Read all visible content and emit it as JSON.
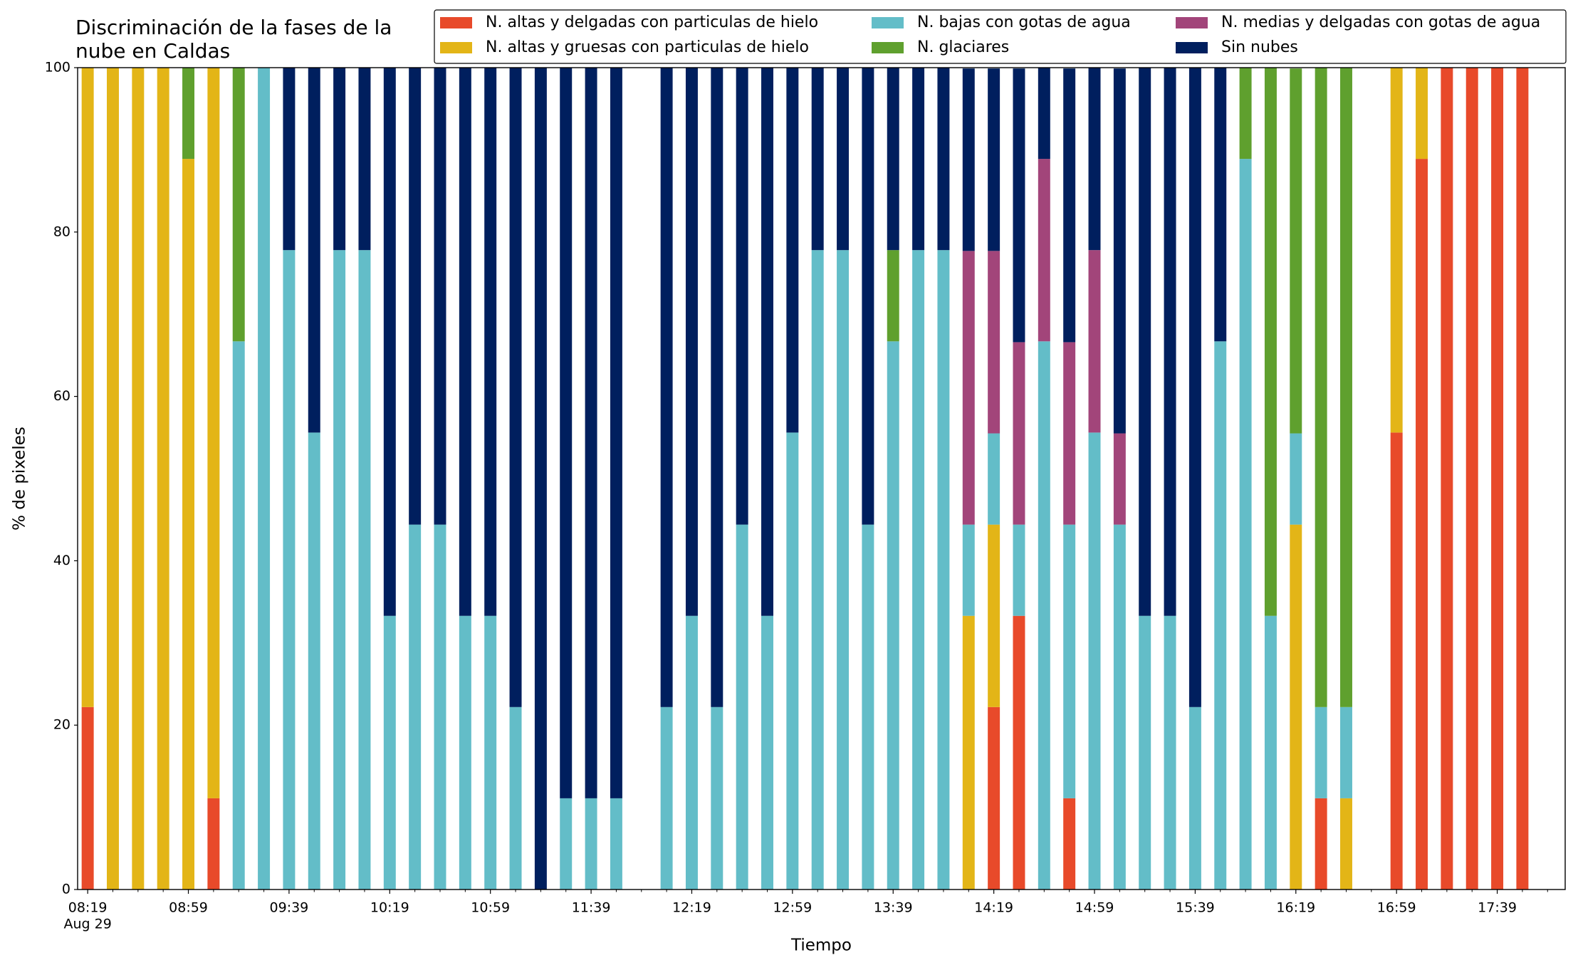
{
  "chart_data": {
    "type": "stacked_bar",
    "title": "Discriminación de la fases de la\nnube en Caldas",
    "xlabel": "Tiempo",
    "ylabel": "% de pixeles",
    "xdate": "Aug 29",
    "x": [
      "08:19",
      "08:29",
      "08:39",
      "08:49",
      "08:59",
      "09:09",
      "09:19",
      "09:29",
      "09:39",
      "09:49",
      "09:59",
      "10:09",
      "10:19",
      "10:29",
      "10:39",
      "10:49",
      "10:59",
      "11:09",
      "11:19",
      "11:29",
      "11:39",
      "11:49",
      "12:09",
      "12:19",
      "12:29",
      "12:39",
      "12:49",
      "12:59",
      "13:09",
      "13:19",
      "13:29",
      "13:39",
      "13:49",
      "13:59",
      "14:09",
      "14:19",
      "14:29",
      "14:39",
      "14:49",
      "14:59",
      "15:09",
      "15:19",
      "15:29",
      "15:39",
      "15:49",
      "15:59",
      "16:09",
      "16:19",
      "16:29",
      "16:39",
      "16:59",
      "17:09",
      "17:19",
      "17:29",
      "17:39",
      "17:49"
    ],
    "series": [
      {
        "name": "N. altas y delgadas con particulas de hielo",
        "color": "#e84a2a",
        "values": [
          22.2,
          0,
          0,
          0,
          0,
          11.1,
          0,
          0,
          0,
          0,
          0,
          0,
          0,
          0,
          0,
          0,
          0,
          0,
          0,
          0,
          0,
          0,
          0,
          0,
          0,
          0,
          0,
          0,
          0,
          0,
          0,
          0,
          0,
          0,
          0,
          22.2,
          33.3,
          0,
          11.1,
          0,
          0,
          0,
          0,
          0,
          0,
          0,
          0,
          0,
          11.1,
          0,
          55.6,
          88.9,
          100,
          100,
          100,
          100
        ]
      },
      {
        "name": "N. altas y gruesas con particulas de hielo",
        "color": "#e3b517",
        "values": [
          77.8,
          100,
          100,
          100,
          88.9,
          88.9,
          0,
          0,
          0,
          0,
          0,
          0,
          0,
          0,
          0,
          0,
          0,
          0,
          0,
          0,
          0,
          0,
          0,
          0,
          0,
          0,
          0,
          0,
          0,
          0,
          0,
          0,
          0,
          0,
          33.3,
          22.2,
          0,
          0,
          0,
          0,
          0,
          0,
          0,
          0,
          0,
          0,
          0,
          44.4,
          0,
          11.1,
          44.4,
          11.1,
          0,
          0,
          0,
          0
        ]
      },
      {
        "name": "N. bajas con gotas de agua",
        "color": "#63bdc8",
        "values": [
          0,
          0,
          0,
          0,
          0,
          0,
          66.7,
          100,
          77.8,
          55.6,
          77.8,
          77.8,
          33.3,
          44.4,
          44.4,
          33.3,
          33.3,
          22.2,
          0,
          11.1,
          11.1,
          11.1,
          22.2,
          33.3,
          22.2,
          44.4,
          33.3,
          55.6,
          77.8,
          77.8,
          44.4,
          66.7,
          77.8,
          77.8,
          11.1,
          11.1,
          11.1,
          66.7,
          33.3,
          55.6,
          44.4,
          33.3,
          33.3,
          22.2,
          66.7,
          88.9,
          33.3,
          11.1,
          11.1,
          11.1,
          0,
          0,
          0,
          0,
          0,
          0
        ]
      },
      {
        "name": "N. glaciares",
        "color": "#5fa02e",
        "values": [
          0,
          0,
          0,
          0,
          11.1,
          0,
          33.3,
          0,
          0,
          0,
          0,
          0,
          0,
          0,
          0,
          0,
          0,
          0,
          0,
          0,
          0,
          0,
          0,
          0,
          0,
          0,
          0,
          0,
          0,
          0,
          0,
          11.1,
          0,
          0,
          0,
          0,
          0,
          0,
          0,
          0,
          0,
          0,
          0,
          0,
          0,
          11.1,
          66.7,
          44.4,
          77.8,
          77.8,
          0,
          0,
          0,
          0,
          0,
          0
        ]
      },
      {
        "name": "N. medias y delgadas con gotas de agua",
        "color": "#a2457a",
        "values": [
          0,
          0,
          0,
          0,
          0,
          0,
          0,
          0,
          0,
          0,
          0,
          0,
          0,
          0,
          0,
          0,
          0,
          0,
          0,
          0,
          0,
          0,
          0,
          0,
          0,
          0,
          0,
          0,
          0,
          0,
          0,
          0,
          0,
          0,
          33.3,
          22.2,
          22.2,
          22.2,
          22.2,
          22.2,
          11.1,
          0,
          0,
          0,
          0,
          0,
          0,
          0,
          0,
          0,
          0,
          0,
          0,
          0,
          0,
          0
        ]
      },
      {
        "name": "Sin nubes",
        "color": "#001f5e",
        "values": [
          0,
          0,
          0,
          0,
          0,
          0,
          0,
          0,
          22.2,
          44.4,
          22.2,
          22.2,
          66.7,
          55.6,
          55.6,
          66.7,
          66.7,
          77.8,
          100,
          88.9,
          88.9,
          88.9,
          77.8,
          66.7,
          77.8,
          55.6,
          66.7,
          44.4,
          22.2,
          22.2,
          55.6,
          22.2,
          22.2,
          22.2,
          22.2,
          22.2,
          33.3,
          11.1,
          33.3,
          22.2,
          44.4,
          66.7,
          66.7,
          77.8,
          33.3,
          0,
          0,
          0,
          0,
          0,
          0,
          0,
          0,
          0,
          0,
          0
        ]
      }
    ],
    "xlim": [
      "08:15",
      "18:06"
    ],
    "xticks": [
      "08:19",
      "08:59",
      "09:39",
      "10:19",
      "10:59",
      "11:39",
      "12:19",
      "12:59",
      "13:39",
      "14:19",
      "14:59",
      "15:39",
      "16:19",
      "16:59",
      "17:39"
    ],
    "xminorticks": [
      "08:29",
      "08:39",
      "08:49",
      "09:09",
      "09:19",
      "09:29",
      "09:49",
      "09:59",
      "10:09",
      "10:29",
      "10:39",
      "10:49",
      "11:09",
      "11:19",
      "11:29",
      "11:49",
      "11:59",
      "12:09",
      "12:29",
      "12:39",
      "12:49",
      "13:09",
      "13:19",
      "13:29",
      "13:49",
      "13:59",
      "14:09",
      "14:29",
      "14:39",
      "14:49",
      "15:09",
      "15:19",
      "15:29",
      "15:49",
      "15:59",
      "16:09",
      "16:29",
      "16:39",
      "16:49",
      "17:09",
      "17:19",
      "17:29",
      "17:49",
      "17:59"
    ],
    "ylim": [
      0,
      100
    ],
    "yticks": [
      0,
      20,
      40,
      60,
      80,
      100
    ],
    "grid": false,
    "legend": "upper right"
  }
}
